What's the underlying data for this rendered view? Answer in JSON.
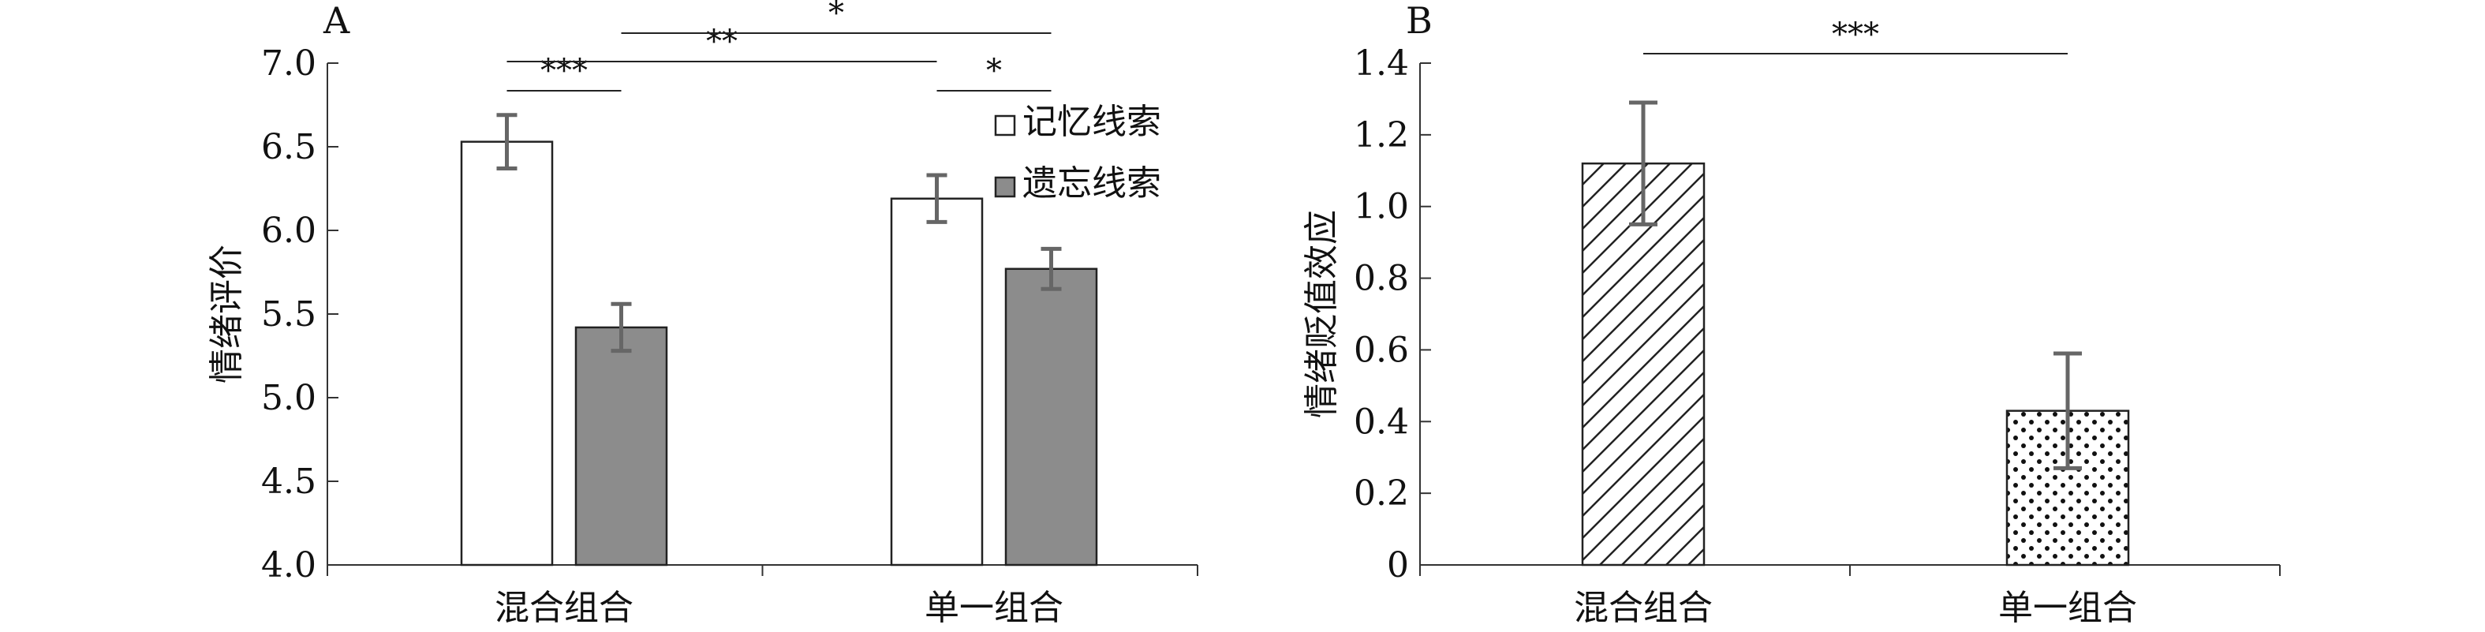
{
  "chart_data": [
    {
      "type": "bar",
      "panel_label": "A",
      "categories": [
        "混合组合",
        "单一组合"
      ],
      "ylabel": "情绪评价",
      "ylim": [
        4.0,
        7.0
      ],
      "yticks": [
        "4.0",
        "4.5",
        "5.0",
        "5.5",
        "6.0",
        "6.5",
        "7.0"
      ],
      "series": [
        {
          "name": "记忆线索",
          "values": [
            6.53,
            6.19
          ],
          "errors": [
            0.16,
            0.14
          ],
          "fill": "#ffffff"
        },
        {
          "name": "遗忘线索",
          "values": [
            5.42,
            5.77
          ],
          "errors": [
            0.14,
            0.12
          ],
          "fill": "#8c8c8c"
        }
      ],
      "significance": [
        {
          "label": "***",
          "from": [
            0,
            0
          ],
          "to": [
            0,
            1
          ]
        },
        {
          "label": "**",
          "from": [
            0,
            0
          ],
          "to": [
            1,
            0
          ]
        },
        {
          "label": "*",
          "from": [
            0,
            1
          ],
          "to": [
            1,
            1
          ]
        },
        {
          "label": "*",
          "from": [
            1,
            0
          ],
          "to": [
            1,
            1
          ]
        }
      ],
      "legend_position": "top-right"
    },
    {
      "type": "bar",
      "panel_label": "B",
      "categories": [
        "混合组合",
        "单一组合"
      ],
      "ylabel": "情绪贬值效应",
      "ylim": [
        0,
        1.4
      ],
      "yticks": [
        "0",
        "0.2",
        "0.4",
        "0.6",
        "0.8",
        "1.0",
        "1.2",
        "1.4"
      ],
      "series": [
        {
          "values": [
            1.12,
            0.43
          ],
          "errors": [
            0.17,
            0.16
          ],
          "patterns": [
            "hatch",
            "dots"
          ]
        }
      ],
      "significance": [
        {
          "label": "***",
          "from": 0,
          "to": 1
        }
      ]
    }
  ]
}
